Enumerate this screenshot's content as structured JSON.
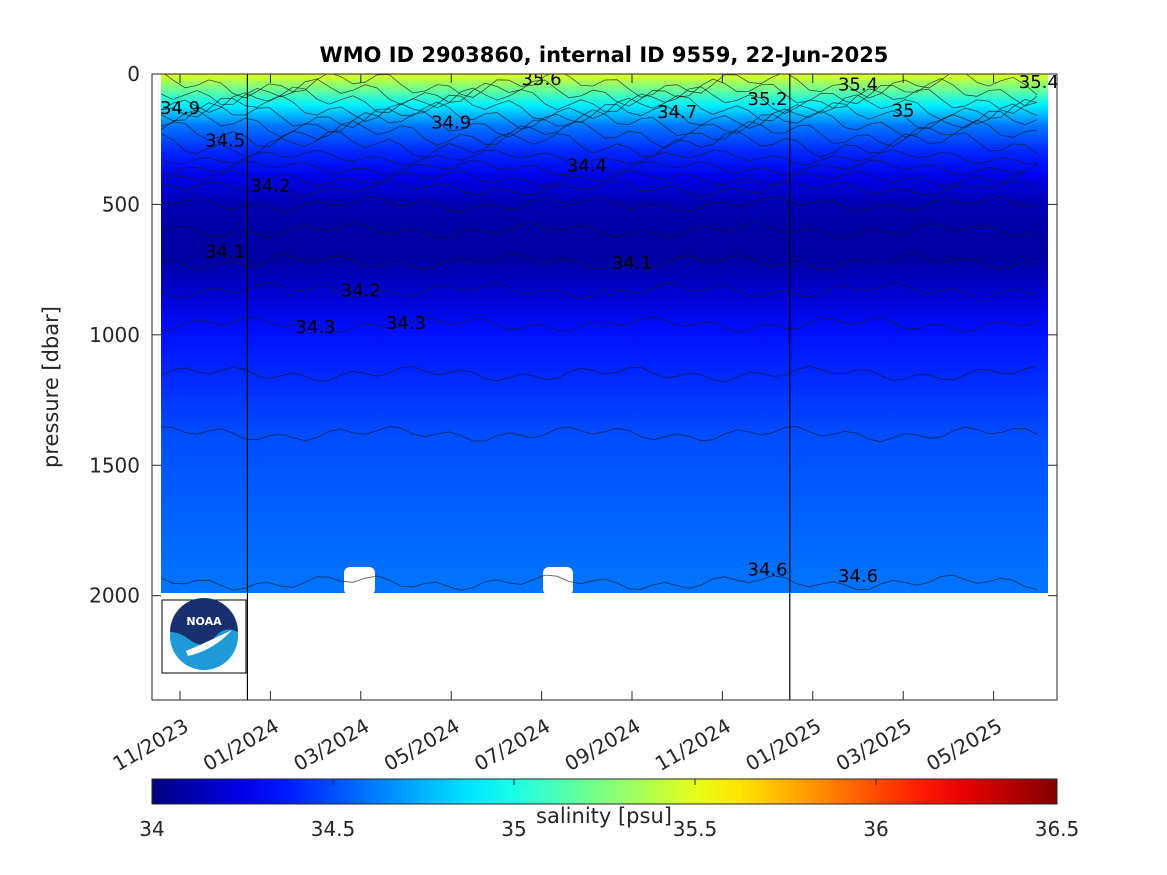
{
  "chart_data": {
    "type": "heatmap",
    "title": "WMO ID 2903860, internal ID 9559, 22-Jun-2025",
    "ylabel": "pressure [dbar]",
    "xlabel": "",
    "ylim": [
      2400,
      0
    ],
    "y_reversed": true,
    "yticks": [
      0,
      500,
      1000,
      1500,
      2000
    ],
    "xticks": [
      "11/2023",
      "01/2024",
      "03/2024",
      "05/2024",
      "07/2024",
      "09/2024",
      "11/2024",
      "01/2025",
      "03/2025",
      "05/2025"
    ],
    "year_boundaries": [
      "01/2024",
      "01/2025"
    ],
    "colorbar": {
      "label": "salinity [psu]",
      "range": [
        34,
        36.5
      ],
      "ticks": [
        "34",
        "34.5",
        "35",
        "35.5",
        "36",
        "36.5"
      ],
      "colormap": "jet"
    },
    "salinity_profile": [
      {
        "pressure": 0,
        "salinity": 35.5
      },
      {
        "pressure": 60,
        "salinity": 35.2
      },
      {
        "pressure": 120,
        "salinity": 34.9
      },
      {
        "pressure": 200,
        "salinity": 34.6
      },
      {
        "pressure": 300,
        "salinity": 34.4
      },
      {
        "pressure": 400,
        "salinity": 34.25
      },
      {
        "pressure": 500,
        "salinity": 34.12
      },
      {
        "pressure": 700,
        "salinity": 34.08
      },
      {
        "pressure": 850,
        "salinity": 34.2
      },
      {
        "pressure": 1000,
        "salinity": 34.35
      },
      {
        "pressure": 1400,
        "salinity": 34.5
      },
      {
        "pressure": 2000,
        "salinity": 34.6
      }
    ],
    "contour_labels": [
      {
        "text": "35.4",
        "date": "09/2023",
        "pressure": 75
      },
      {
        "text": "34.9",
        "date": "11/2023",
        "pressure": 130
      },
      {
        "text": "34.5",
        "date": "12/2023",
        "pressure": 255
      },
      {
        "text": "34.5",
        "date": "09/2023",
        "pressure": 315
      },
      {
        "text": "34.2",
        "date": "01/2024",
        "pressure": 430
      },
      {
        "text": "34.1",
        "date": "12/2023",
        "pressure": 680
      },
      {
        "text": "35.6",
        "date": "07/2024",
        "pressure": 20
      },
      {
        "text": "34.9",
        "date": "05/2024",
        "pressure": 185
      },
      {
        "text": "34.7",
        "date": "10/2024",
        "pressure": 145
      },
      {
        "text": "34.4",
        "date": "08/2024",
        "pressure": 350
      },
      {
        "text": "34.1",
        "date": "09/2024",
        "pressure": 725
      },
      {
        "text": "34.2",
        "date": "03/2024",
        "pressure": 830
      },
      {
        "text": "34.3",
        "date": "02/2024",
        "pressure": 970
      },
      {
        "text": "34.3",
        "date": "04/2024",
        "pressure": 955
      },
      {
        "text": "35.2",
        "date": "12/2024",
        "pressure": 95
      },
      {
        "text": "35.4",
        "date": "02/2025",
        "pressure": 40
      },
      {
        "text": "35",
        "date": "03/2025",
        "pressure": 140
      },
      {
        "text": "35.4",
        "date": "06/2025",
        "pressure": 30
      },
      {
        "text": "34.6",
        "date": "12/2024",
        "pressure": 1900
      },
      {
        "text": "34.6",
        "date": "02/2025",
        "pressure": 1925
      }
    ]
  },
  "logo": {
    "text": "NOAA",
    "navy": "#1a2f6e",
    "cyan": "#1e9ad6"
  }
}
